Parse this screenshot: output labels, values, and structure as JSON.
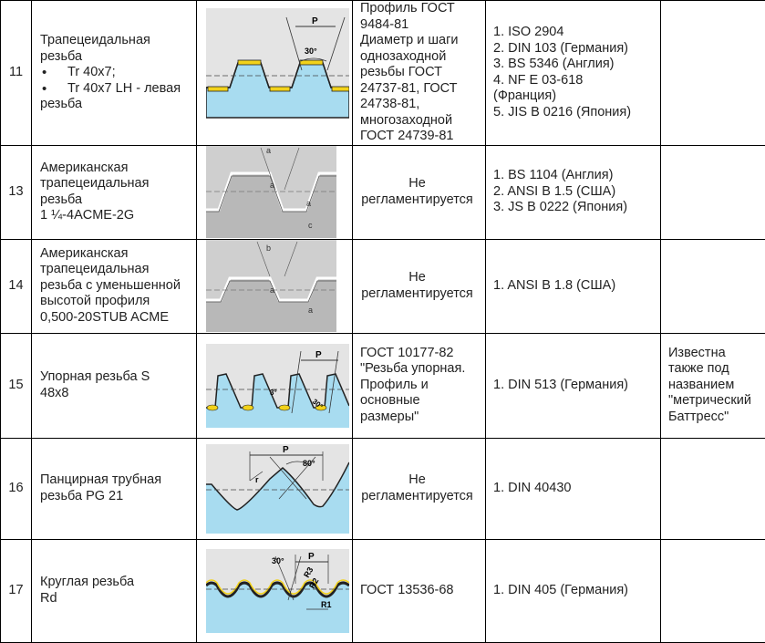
{
  "rows": [
    {
      "num": "11",
      "name_lines": [
        "Трапецеидальная",
        "резьба"
      ],
      "bullets": [
        "Tr 40x7;",
        "Tr 40x7 LH - левая"
      ],
      "name_tail": "резьба",
      "gost_lines": [
        "Профиль ГОСТ",
        "9484-81",
        "Диаметр и шаги",
        "однозаходной",
        "резьбы ГОСТ",
        "24737-81, ГОСТ",
        "24738-81,",
        "многозаходной",
        "ГОСТ 24739-81"
      ],
      "std_lines": [
        "1. ISO 2904",
        "2. DIN 103 (Германия)",
        "3. BS 5346 (Англия)",
        "4. NF E 03-618",
        "(Франция)",
        "5. JIS B 0216 (Япония)"
      ],
      "note_lines": [],
      "diagram": {
        "p_label": "P",
        "angle_label": "30°"
      }
    },
    {
      "num": "13",
      "name_lines": [
        "Американская",
        "трапецеидальная",
        "резьба",
        "1 ¼-4ACME-2G"
      ],
      "gost_lines": [
        "Не",
        "регламентируется"
      ],
      "std_lines": [
        "1. BS 1104 (Англия)",
        "2. ANSI B 1.5 (США)",
        "3. JS B 0222 (Япония)"
      ],
      "note_lines": [],
      "diagram": {
        "labels": [
          "a",
          "a",
          "a",
          "c"
        ]
      }
    },
    {
      "num": "14",
      "name_lines": [
        "Американская",
        "трапецеидальная",
        "резьба с уменьшенной",
        "высотой профиля",
        "0,500-20STUB ACME"
      ],
      "gost_lines": [
        "Не",
        "регламентируется"
      ],
      "std_lines": [
        "1. ANSI B 1.8 (США)"
      ],
      "note_lines": [],
      "diagram": {
        "labels": [
          "b",
          "a",
          "a"
        ]
      }
    },
    {
      "num": "15",
      "name_lines": [
        "Упорная резьба S",
        "48x8"
      ],
      "gost_lines": [
        "ГОСТ 10177-82",
        "\"Резьба упорная.",
        "Профиль и",
        "основные",
        "размеры\""
      ],
      "std_lines": [
        "1. DIN 513 (Германия)"
      ],
      "note_lines": [
        "Известна",
        "также под",
        "названием",
        "\"метрический",
        "Баттресс\""
      ],
      "diagram": {
        "p_label": "P",
        "angle1": "3°",
        "angle2": "30°"
      }
    },
    {
      "num": "16",
      "name_lines": [
        "Панцирная трубная",
        "резьба PG 21"
      ],
      "gost_lines": [
        "Не",
        "регламентируется"
      ],
      "std_lines": [
        "1. DIN 40430"
      ],
      "note_lines": [],
      "diagram": {
        "p_label": "P",
        "angle_label": "80°",
        "r_label": "r"
      }
    },
    {
      "num": "17",
      "name_lines": [
        "Круглая резьба",
        "Rd"
      ],
      "gost_lines": [
        "ГОСТ 13536-68"
      ],
      "std_lines": [
        "1. DIN 405 (Германия)"
      ],
      "note_lines": [],
      "diagram": {
        "p_label": "P",
        "angle_label": "30°",
        "r1": "R1",
        "r2": "R2",
        "r3": "R3"
      }
    }
  ],
  "colors": {
    "border": "#000000",
    "blue": "#a8dcf0",
    "yellow": "#f2d21a",
    "gray": "#dcdcdc"
  }
}
